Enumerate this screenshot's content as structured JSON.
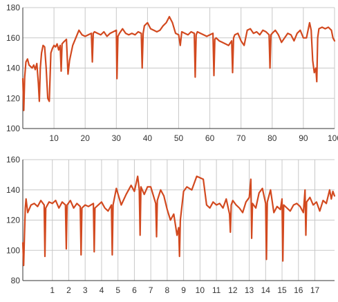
{
  "colors": {
    "line": "#d2491f",
    "grid": "#c8c8c8",
    "axis": "#333333",
    "text": "#333333"
  },
  "chart_data": [
    {
      "type": "line",
      "title": "",
      "xlabel": "",
      "ylabel": "",
      "grid": true,
      "xlim": [
        0,
        100
      ],
      "ylim": [
        100,
        180
      ],
      "xticks": [
        10,
        20,
        30,
        40,
        50,
        60,
        70,
        80,
        90,
        100
      ],
      "xtick_labels": [
        "10",
        "20",
        "30",
        "40",
        "50",
        "60",
        "70",
        "80",
        "90",
        "100"
      ],
      "yticks": [
        100,
        120,
        140,
        160,
        180
      ],
      "ytick_labels": [
        "100",
        "120",
        "140",
        "160",
        "180"
      ],
      "series": [
        {
          "x": [
            0,
            0.3,
            0.6,
            1,
            1.5,
            2,
            2.5,
            3,
            3.5,
            4,
            4.5,
            5,
            5.3,
            5.6,
            6,
            6.5,
            7,
            7.5,
            8,
            8.5,
            9,
            9.5,
            10,
            10.5,
            11,
            11.5,
            12,
            12.3,
            12.6,
            13,
            14,
            14.5,
            15,
            16,
            17,
            18,
            19,
            20,
            21,
            22,
            22.3,
            22.6,
            23,
            24,
            25,
            26,
            27,
            28,
            29,
            30,
            30.2,
            30.5,
            31,
            32,
            33,
            34,
            35,
            36,
            37,
            38,
            38.3,
            38.6,
            39,
            40,
            41,
            42,
            43,
            44,
            45,
            46,
            47,
            48,
            49,
            50,
            50.5,
            51,
            52,
            53,
            54,
            55,
            55.3,
            55.6,
            56,
            57,
            58,
            59,
            60,
            61,
            61.3,
            61.6,
            62,
            63,
            64,
            65,
            66,
            67,
            67.3,
            67.6,
            68,
            69,
            70,
            71,
            72,
            73,
            74,
            75,
            76,
            77,
            78,
            79,
            79.3,
            79.6,
            80,
            81,
            82,
            83,
            84,
            85,
            86,
            87,
            88,
            89,
            90,
            91,
            92,
            92.5,
            93,
            93.5,
            94,
            94.3,
            94.6,
            95,
            96,
            97,
            98,
            99,
            99.5,
            100
          ],
          "y": [
            133,
            112,
            134,
            144,
            146,
            142,
            141,
            140,
            142,
            139,
            143,
            130,
            118,
            140,
            150,
            155,
            154,
            140,
            120,
            118,
            150,
            153,
            155,
            154,
            156,
            152,
            155,
            138,
            156,
            157,
            159,
            136,
            145,
            155,
            160,
            165,
            162,
            161,
            162,
            163,
            144,
            163,
            164,
            163,
            162,
            164,
            161,
            163,
            164,
            165,
            133,
            161,
            163,
            166,
            163,
            162,
            163,
            162,
            164,
            163,
            140,
            163,
            168,
            170,
            166,
            165,
            164,
            165,
            168,
            170,
            174,
            170,
            163,
            162,
            155,
            164,
            163,
            162,
            164,
            163,
            134,
            162,
            164,
            163,
            162,
            161,
            162,
            163,
            135,
            159,
            160,
            158,
            157,
            156,
            155,
            158,
            137,
            160,
            162,
            163,
            158,
            155,
            165,
            166,
            163,
            164,
            162,
            165,
            164,
            162,
            140,
            162,
            163,
            165,
            162,
            157,
            160,
            163,
            162,
            158,
            163,
            165,
            160,
            160,
            170,
            165,
            145,
            137,
            140,
            131,
            160,
            166,
            167,
            166,
            167,
            165,
            160,
            158
          ]
        }
      ]
    },
    {
      "type": "line",
      "title": "",
      "xlabel": "",
      "ylabel": "",
      "grid": true,
      "xlim": [
        -0.8,
        18.2
      ],
      "ylim": [
        80,
        160
      ],
      "xticks": [
        1,
        2,
        3,
        4,
        5,
        6,
        7,
        8,
        9,
        10,
        11,
        12,
        13,
        14,
        15,
        16,
        17
      ],
      "xtick_labels": [
        "1",
        "2",
        "3",
        "4",
        "5",
        "6",
        "7",
        "8",
        "9",
        "10",
        "11",
        "12",
        "13",
        "14",
        "15",
        "16",
        "17"
      ],
      "yticks": [
        80,
        100,
        120,
        140,
        160
      ],
      "ytick_labels": [
        "80",
        "100",
        "120",
        "140",
        "160"
      ],
      "series": [
        {
          "x": [
            -0.8,
            -0.75,
            -0.7,
            -0.65,
            -0.6,
            -0.5,
            -0.3,
            -0.1,
            0.1,
            0.3,
            0.5,
            0.55,
            0.6,
            0.8,
            1.0,
            1.2,
            1.4,
            1.6,
            1.8,
            1.85,
            1.9,
            2.1,
            2.3,
            2.5,
            2.7,
            2.75,
            2.8,
            3.0,
            3.2,
            3.5,
            3.55,
            3.6,
            3.8,
            4.0,
            4.2,
            4.4,
            4.6,
            4.65,
            4.7,
            4.9,
            5.2,
            5.5,
            5.8,
            6.0,
            6.2,
            6.3,
            6.35,
            6.4,
            6.6,
            6.8,
            7.0,
            7.3,
            7.35,
            7.4,
            7.6,
            7.8,
            8.0,
            8.2,
            8.4,
            8.6,
            8.7,
            8.75,
            8.8,
            9.0,
            9.2,
            9.5,
            9.8,
            10.0,
            10.2,
            10.4,
            10.6,
            10.8,
            11.0,
            11.2,
            11.4,
            11.6,
            11.8,
            11.85,
            11.9,
            12.0,
            12.2,
            12.4,
            12.6,
            12.8,
            13.0,
            13.1,
            13.15,
            13.2,
            13.4,
            13.6,
            13.8,
            14.0,
            14.05,
            14.1,
            14.3,
            14.5,
            14.7,
            14.9,
            15.0,
            15.05,
            15.1,
            15.3,
            15.5,
            15.7,
            15.9,
            16.1,
            16.3,
            16.4,
            16.45,
            16.5,
            16.7,
            16.9,
            17.1,
            17.3,
            17.5,
            17.7,
            17.9,
            18.0,
            18.1,
            18.2
          ],
          "y": [
            105,
            90,
            110,
            128,
            134,
            125,
            130,
            131,
            129,
            133,
            130,
            96,
            128,
            132,
            131,
            133,
            128,
            132,
            130,
            101,
            130,
            133,
            128,
            131,
            129,
            97,
            128,
            130,
            129,
            131,
            99,
            128,
            130,
            132,
            128,
            126,
            130,
            97,
            130,
            141,
            130,
            137,
            143,
            139,
            149,
            140,
            110,
            142,
            137,
            142,
            142,
            131,
            109,
            133,
            140,
            136,
            127,
            120,
            124,
            110,
            115,
            96,
            120,
            139,
            142,
            140,
            149,
            148,
            147,
            130,
            128,
            132,
            130,
            131,
            128,
            134,
            124,
            112,
            130,
            133,
            130,
            128,
            125,
            132,
            135,
            147,
            108,
            131,
            128,
            138,
            141,
            131,
            94,
            132,
            140,
            125,
            129,
            127,
            134,
            93,
            130,
            128,
            126,
            130,
            131,
            129,
            125,
            140,
            110,
            132,
            135,
            130,
            132,
            126,
            133,
            131,
            140,
            134,
            139,
            136
          ]
        }
      ]
    }
  ]
}
